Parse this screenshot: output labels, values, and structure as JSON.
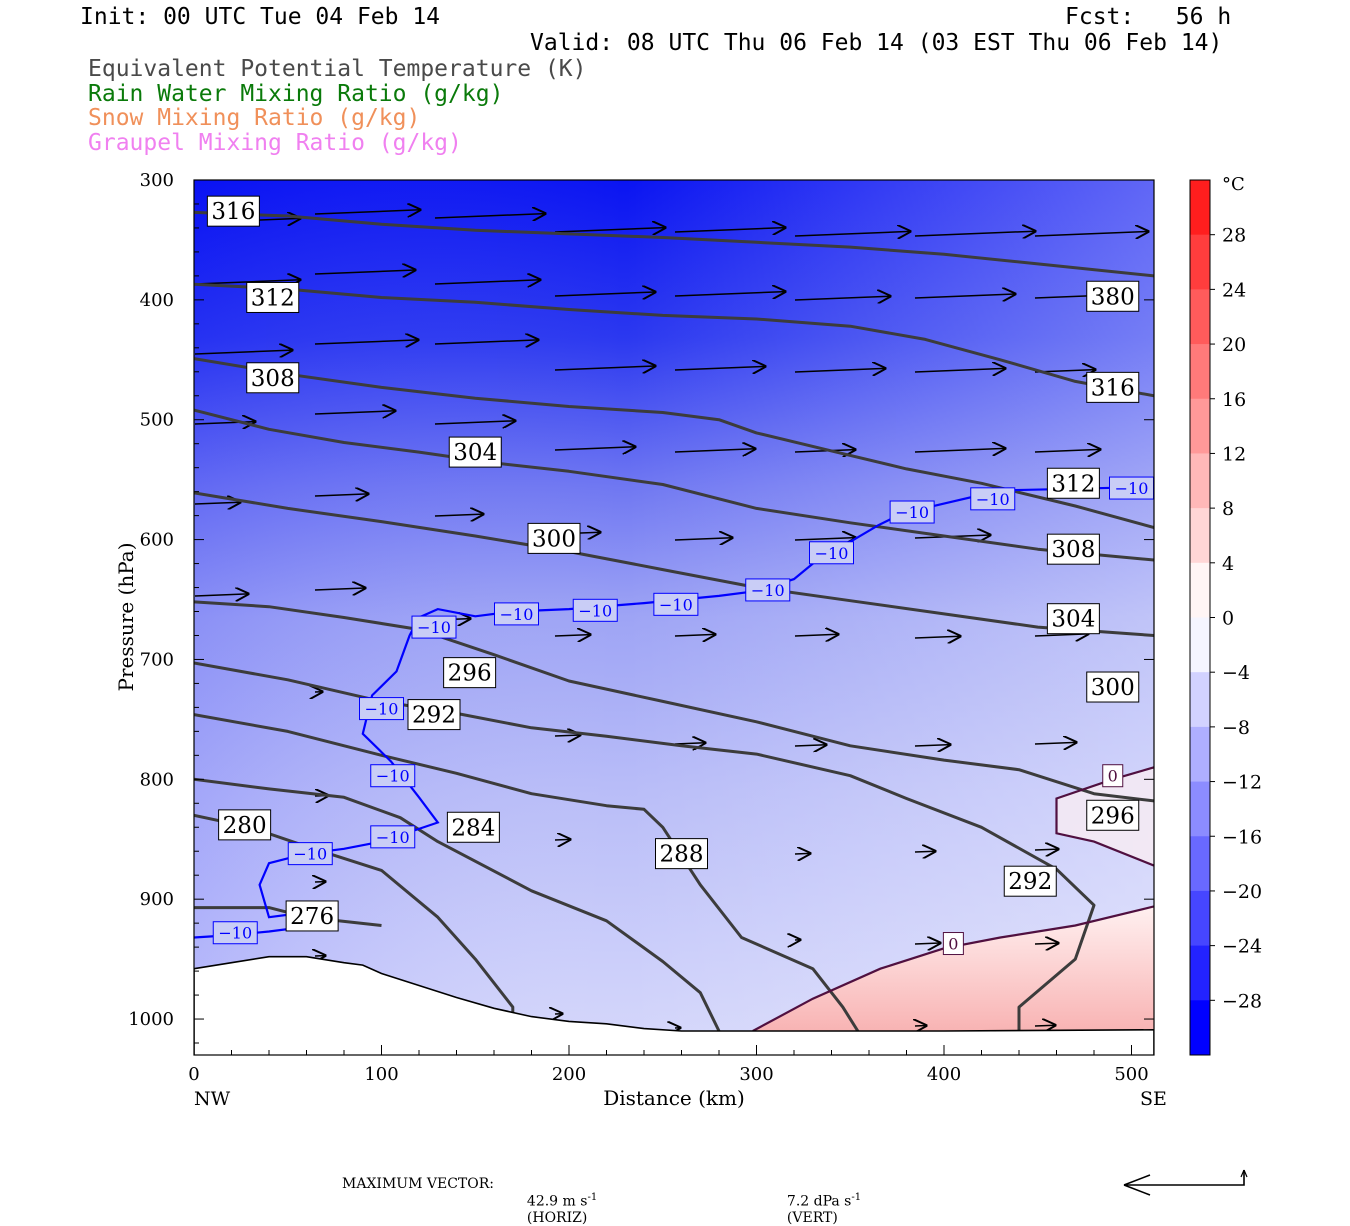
{
  "header": {
    "init": "Init: 00 UTC Tue 04 Feb 14",
    "fcst": "Fcst:   56 h",
    "valid": "Valid: 08 UTC Thu 06 Feb 14 (03 EST Thu 06 Feb 14)",
    "legend": [
      {
        "text": "Equivalent Potential Temperature (K)",
        "color": "#4a4a4a"
      },
      {
        "text": "Rain Water Mixing Ratio (g/kg)",
        "color": "#0a7a0a"
      },
      {
        "text": "Snow Mixing Ratio (g/kg)",
        "color": "#f0905a"
      },
      {
        "text": "Graupel Mixing Ratio (g/kg)",
        "color": "#f080f0"
      }
    ]
  },
  "chart_data": {
    "type": "contour",
    "xlabel": "Distance (km)",
    "ylabel": "Pressure (hPa)",
    "xlim": [
      0,
      512
    ],
    "ylim": [
      300,
      1030
    ],
    "x_ticks": [
      0,
      100,
      200,
      300,
      400,
      500
    ],
    "y_ticks": [
      300,
      400,
      500,
      600,
      700,
      800,
      900,
      1000
    ],
    "x_end_labels": {
      "left": "NW",
      "right": "SE"
    },
    "colorbar": {
      "unit": "°C",
      "labels": [
        28,
        24,
        20,
        16,
        12,
        8,
        4,
        0,
        -4,
        -8,
        -12,
        -16,
        -20,
        -24,
        -28
      ],
      "cold_color": "#0000ff",
      "warm_color": "#ff2020"
    },
    "theta_e_contours": [
      {
        "value": 316,
        "points": [
          [
            0,
            327
          ],
          [
            50,
            330
          ],
          [
            100,
            337
          ],
          [
            150,
            342
          ],
          [
            200,
            345
          ],
          [
            250,
            348
          ],
          [
            300,
            352
          ],
          [
            350,
            356
          ],
          [
            400,
            362
          ],
          [
            450,
            370
          ],
          [
            512,
            380
          ]
        ]
      },
      {
        "value": 312,
        "points": [
          [
            0,
            387
          ],
          [
            50,
            391
          ],
          [
            100,
            398
          ],
          [
            150,
            402
          ],
          [
            200,
            408
          ],
          [
            250,
            413
          ],
          [
            300,
            416
          ],
          [
            350,
            422
          ],
          [
            390,
            433
          ],
          [
            430,
            450
          ],
          [
            470,
            468
          ],
          [
            512,
            480
          ]
        ]
      },
      {
        "value": 308,
        "points": [
          [
            0,
            449
          ],
          [
            50,
            462
          ],
          [
            100,
            473
          ],
          [
            150,
            482
          ],
          [
            200,
            489
          ],
          [
            250,
            494
          ],
          [
            280,
            500
          ],
          [
            300,
            511
          ],
          [
            340,
            526
          ],
          [
            380,
            541
          ],
          [
            420,
            553
          ],
          [
            470,
            572
          ],
          [
            512,
            590
          ]
        ]
      },
      {
        "value": 304,
        "points": [
          [
            0,
            492
          ],
          [
            40,
            508
          ],
          [
            80,
            519
          ],
          [
            120,
            527
          ],
          [
            160,
            536
          ],
          [
            200,
            543
          ],
          [
            250,
            554
          ],
          [
            300,
            574
          ],
          [
            350,
            586
          ],
          [
            400,
            597
          ],
          [
            450,
            608
          ],
          [
            512,
            617
          ]
        ]
      },
      {
        "value": 300,
        "points": [
          [
            0,
            561
          ],
          [
            50,
            574
          ],
          [
            100,
            585
          ],
          [
            150,
            597
          ],
          [
            200,
            610
          ],
          [
            250,
            625
          ],
          [
            300,
            640
          ],
          [
            350,
            651
          ],
          [
            400,
            662
          ],
          [
            450,
            673
          ],
          [
            512,
            680
          ]
        ]
      },
      {
        "value": 296,
        "points": [
          [
            0,
            652
          ],
          [
            40,
            656
          ],
          [
            80,
            665
          ],
          [
            120,
            675
          ],
          [
            160,
            696
          ],
          [
            200,
            718
          ],
          [
            250,
            735
          ],
          [
            300,
            752
          ],
          [
            350,
            772
          ],
          [
            400,
            784
          ],
          [
            440,
            792
          ],
          [
            480,
            812
          ],
          [
            512,
            818
          ]
        ]
      },
      {
        "value": 292,
        "points": [
          [
            0,
            703
          ],
          [
            50,
            717
          ],
          [
            100,
            735
          ],
          [
            140,
            745
          ],
          [
            180,
            757
          ],
          [
            220,
            764
          ],
          [
            260,
            772
          ],
          [
            300,
            779
          ],
          [
            350,
            797
          ],
          [
            380,
            816
          ],
          [
            420,
            840
          ],
          [
            460,
            875
          ],
          [
            480,
            905
          ],
          [
            470,
            950
          ],
          [
            440,
            990
          ],
          [
            440,
            1010
          ]
        ]
      },
      {
        "value": 288,
        "points": [
          [
            0,
            746
          ],
          [
            50,
            760
          ],
          [
            100,
            780
          ],
          [
            140,
            795
          ],
          [
            180,
            812
          ],
          [
            220,
            822
          ],
          [
            240,
            825
          ],
          [
            250,
            840
          ],
          [
            270,
            888
          ],
          [
            292,
            932
          ],
          [
            330,
            958
          ],
          [
            346,
            990
          ],
          [
            354,
            1010
          ]
        ]
      },
      {
        "value": 284,
        "points": [
          [
            0,
            800
          ],
          [
            40,
            808
          ],
          [
            80,
            815
          ],
          [
            110,
            832
          ],
          [
            130,
            852
          ],
          [
            180,
            893
          ],
          [
            220,
            918
          ],
          [
            250,
            952
          ],
          [
            270,
            978
          ],
          [
            280,
            1010
          ]
        ]
      },
      {
        "value": 280,
        "points": [
          [
            0,
            830
          ],
          [
            30,
            840
          ],
          [
            60,
            856
          ],
          [
            100,
            876
          ],
          [
            130,
            915
          ],
          [
            150,
            950
          ],
          [
            170,
            990
          ],
          [
            170,
            1008
          ]
        ]
      },
      {
        "value": 276,
        "points": [
          [
            0,
            907
          ],
          [
            40,
            907
          ],
          [
            60,
            915
          ],
          [
            100,
            922
          ]
        ]
      }
    ],
    "temperature_contours": [
      {
        "value": -10,
        "color": "#0000ff",
        "points": [
          [
            0,
            932
          ],
          [
            20,
            930
          ],
          [
            40,
            927
          ],
          [
            60,
            923
          ],
          [
            50,
            913
          ],
          [
            40,
            915
          ],
          [
            35,
            888
          ],
          [
            40,
            870
          ],
          [
            60,
            862
          ],
          [
            80,
            858
          ],
          [
            100,
            852
          ],
          [
            130,
            836
          ],
          [
            120,
            815
          ],
          [
            105,
            785
          ],
          [
            90,
            762
          ],
          [
            95,
            730
          ],
          [
            108,
            710
          ],
          [
            115,
            680
          ],
          [
            120,
            665
          ],
          [
            130,
            658
          ],
          [
            150,
            664
          ],
          [
            170,
            660
          ],
          [
            200,
            658
          ],
          [
            240,
            653
          ],
          [
            280,
            647
          ],
          [
            300,
            643
          ],
          [
            320,
            633
          ],
          [
            330,
            620
          ],
          [
            340,
            610
          ],
          [
            352,
            600
          ],
          [
            365,
            588
          ],
          [
            378,
            578
          ],
          [
            400,
            570
          ],
          [
            430,
            559
          ],
          [
            460,
            558
          ],
          [
            512,
            556
          ]
        ]
      },
      {
        "value": 0,
        "color": "#501040",
        "points": [
          [
            298,
            1010
          ],
          [
            330,
            983
          ],
          [
            366,
            958
          ],
          [
            400,
            941
          ],
          [
            430,
            932
          ],
          [
            470,
            922
          ],
          [
            512,
            906
          ]
        ]
      },
      {
        "value": 0,
        "color": "#501040",
        "points": [
          [
            512,
            872
          ],
          [
            480,
            852
          ],
          [
            460,
            845
          ],
          [
            460,
            816
          ],
          [
            490,
            800
          ],
          [
            512,
            790
          ]
        ]
      }
    ],
    "theta_e_labels": [
      {
        "value": 316,
        "x": 21,
        "p": 326
      },
      {
        "value": 312,
        "x": 42,
        "p": 398
      },
      {
        "value": 308,
        "x": 42,
        "p": 465
      },
      {
        "value": 304,
        "x": 150,
        "p": 527
      },
      {
        "value": 300,
        "x": 192,
        "p": 599
      },
      {
        "value": 296,
        "x": 147,
        "p": 711
      },
      {
        "value": 292,
        "x": 128,
        "p": 746
      },
      {
        "value": 288,
        "x": 260,
        "p": 862
      },
      {
        "value": 284,
        "x": 149,
        "p": 840
      },
      {
        "value": 280,
        "x": 27,
        "p": 838
      },
      {
        "value": 276,
        "x": 63,
        "p": 914
      },
      {
        "value": 380,
        "x": 490,
        "p": 397
      },
      {
        "value": 316,
        "x": 490,
        "p": 473
      },
      {
        "value": 312,
        "x": 469,
        "p": 553
      },
      {
        "value": 308,
        "x": 469,
        "p": 608
      },
      {
        "value": 304,
        "x": 469,
        "p": 666
      },
      {
        "value": 300,
        "x": 490,
        "p": 723
      },
      {
        "value": 296,
        "x": 490,
        "p": 830
      },
      {
        "value": 292,
        "x": 446,
        "p": 885
      }
    ],
    "temperature_labels": [
      {
        "value": -10,
        "x": 22,
        "p": 928
      },
      {
        "value": -10,
        "x": 62,
        "p": 862
      },
      {
        "value": -10,
        "x": 106,
        "p": 848
      },
      {
        "value": -10,
        "x": 106,
        "p": 797
      },
      {
        "value": -10,
        "x": 100,
        "p": 741
      },
      {
        "value": -10,
        "x": 128,
        "p": 673
      },
      {
        "value": -10,
        "x": 172,
        "p": 662
      },
      {
        "value": -10,
        "x": 214,
        "p": 659
      },
      {
        "value": -10,
        "x": 257,
        "p": 654
      },
      {
        "value": -10,
        "x": 306,
        "p": 642
      },
      {
        "value": -10,
        "x": 340,
        "p": 611
      },
      {
        "value": -10,
        "x": 383,
        "p": 577
      },
      {
        "value": -10,
        "x": 426,
        "p": 566
      },
      {
        "value": -10,
        "x": 500,
        "p": 557
      },
      {
        "value": 0,
        "x": 405,
        "p": 937
      },
      {
        "value": 0,
        "x": 490,
        "p": 797
      }
    ],
    "ground_profile": [
      [
        0,
        958
      ],
      [
        20,
        953
      ],
      [
        40,
        948
      ],
      [
        60,
        948
      ],
      [
        80,
        953
      ],
      [
        90,
        955
      ],
      [
        100,
        962
      ],
      [
        120,
        972
      ],
      [
        140,
        982
      ],
      [
        160,
        991
      ],
      [
        180,
        998
      ],
      [
        200,
        1002
      ],
      [
        220,
        1004
      ],
      [
        240,
        1008
      ],
      [
        260,
        1010
      ],
      [
        280,
        1010
      ],
      [
        320,
        1010
      ],
      [
        400,
        1010
      ],
      [
        512,
        1009
      ]
    ]
  },
  "footer": {
    "max_vector_label": "MAXIMUM VECTOR:",
    "horiz_value": "42.9 m s",
    "horiz_sup": "-1",
    "horiz_unit": "(HORIZ)",
    "vert_value": "7.2 dPa s",
    "vert_sup": "-1",
    "vert_unit": "(VERT)"
  }
}
